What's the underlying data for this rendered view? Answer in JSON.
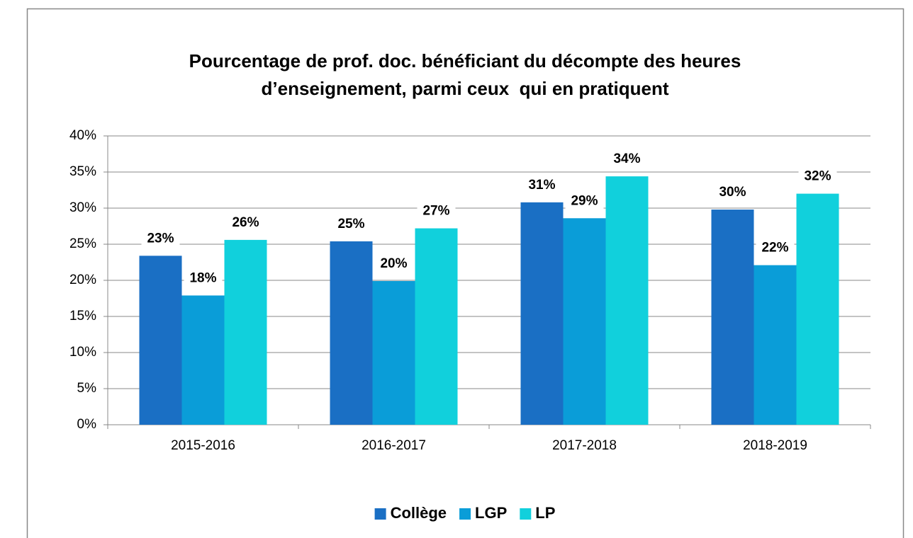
{
  "chart_data": {
    "type": "bar",
    "title": [
      "Pourcentage de prof. doc. bénéficiant du décompte des heures",
      "d’enseignement, parmi ceux  qui en pratiquent"
    ],
    "categories": [
      "2015-2016",
      "2016-2017",
      "2017-2018",
      "2018-2019"
    ],
    "series": [
      {
        "name": "Collège",
        "color": "#1a6fc4",
        "values": [
          23.4,
          25.4,
          30.8,
          29.8
        ],
        "value_labels": [
          "23%",
          "25%",
          "31%",
          "30%"
        ]
      },
      {
        "name": "LGP",
        "color": "#0a9dd8",
        "values": [
          17.9,
          19.9,
          28.6,
          22.1
        ],
        "value_labels": [
          "18%",
          "20%",
          "29%",
          "22%"
        ]
      },
      {
        "name": "LP",
        "color": "#11d0dc",
        "values": [
          25.6,
          27.2,
          34.4,
          32.0
        ],
        "value_labels": [
          "26%",
          "27%",
          "34%",
          "32%"
        ]
      }
    ],
    "ylim": [
      0,
      40
    ],
    "yticks": [
      {
        "value": 0,
        "label": "0%"
      },
      {
        "value": 5,
        "label": "5%"
      },
      {
        "value": 10,
        "label": "10%"
      },
      {
        "value": 15,
        "label": "15%"
      },
      {
        "value": 20,
        "label": "20%"
      },
      {
        "value": 25,
        "label": "25%"
      },
      {
        "value": 30,
        "label": "30%"
      },
      {
        "value": 35,
        "label": "35%"
      },
      {
        "value": 40,
        "label": "40%"
      }
    ],
    "grid": true,
    "legend": "bottom"
  }
}
